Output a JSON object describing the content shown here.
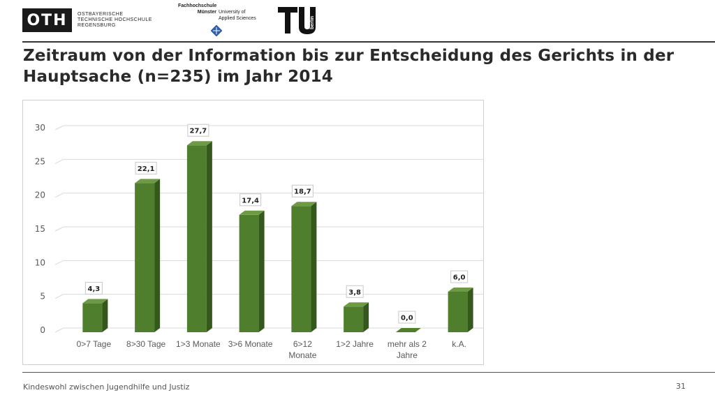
{
  "logos": {
    "oth_mark": "OTH",
    "oth_lines": [
      "OSTBAYERISCHE",
      "TECHNISCHE HOCHSCHULE",
      "REGENSBURG"
    ],
    "fh_top": "Fachhochschule",
    "fh_city": "Münster",
    "fh_right_1": "University of",
    "fh_right_2": "Applied Sciences",
    "tu_text": "berlin"
  },
  "slide": {
    "title": "Zeitraum von der Information bis zur Entscheidung des Gerichts in der Hauptsache (n=235) im Jahr 2014",
    "footer": "Kindeswohl zwischen Jugendhilfe und Justiz",
    "page_number": "31"
  },
  "chart_data": {
    "type": "bar",
    "title": "",
    "xlabel": "",
    "ylabel": "",
    "ylim": [
      0,
      30
    ],
    "yticks": [
      0,
      5,
      10,
      15,
      20,
      25,
      30
    ],
    "grid": true,
    "categories": [
      [
        "0>7 Tage"
      ],
      [
        "8>30 Tage"
      ],
      [
        "1>3 Monate"
      ],
      [
        "3>6 Monate"
      ],
      [
        "6>12",
        "Monate"
      ],
      [
        "1>2 Jahre"
      ],
      [
        "mehr als 2",
        "Jahre"
      ],
      [
        "k.A."
      ]
    ],
    "values": [
      4.3,
      22.1,
      27.7,
      17.4,
      18.7,
      3.8,
      0.0,
      6.0
    ],
    "labels": [
      "4,3",
      "22,1",
      "27,7",
      "17,4",
      "18,7",
      "3,8",
      "0,0",
      "6,0"
    ],
    "colors": {
      "bar_front": "#4f7f2c",
      "bar_side": "#35591c",
      "bar_top": "#6e9a45",
      "grid": "#d9d9d9",
      "axis_text": "#595959"
    }
  }
}
